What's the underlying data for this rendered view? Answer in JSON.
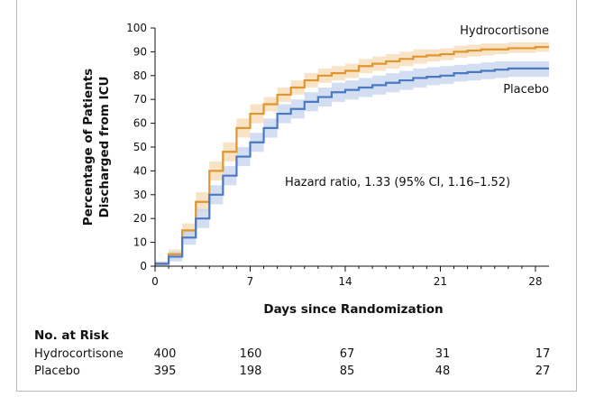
{
  "chart_data": {
    "type": "line",
    "subtype": "kaplan-meier-step",
    "ylabel_line1": "Percentage of Patients",
    "ylabel_line2": "Discharged from ICU",
    "xlabel": "Days since Randomization",
    "xlim": [
      0,
      29
    ],
    "ylim": [
      0,
      100
    ],
    "xticks": [
      0,
      7,
      14,
      21,
      28
    ],
    "yticks": [
      0,
      10,
      20,
      30,
      40,
      50,
      60,
      70,
      80,
      90,
      100
    ],
    "annotation": "Hazard ratio, 1.33 (95% CI, 1.16–1.52)",
    "series": [
      {
        "name": "Hydrocortisone",
        "color": "#e0962e",
        "band_color": "#f6d9b4",
        "x": [
          0,
          1,
          2,
          3,
          4,
          5,
          6,
          7,
          8,
          9,
          10,
          11,
          12,
          13,
          14,
          15,
          16,
          17,
          18,
          19,
          20,
          21,
          22,
          23,
          24,
          25,
          26,
          27,
          28,
          29
        ],
        "y": [
          1,
          5,
          15,
          27,
          40,
          48,
          58,
          64,
          68,
          72,
          75,
          78,
          80,
          81,
          82,
          84,
          85,
          86,
          87,
          88,
          88.5,
          89,
          90,
          90.5,
          91,
          91,
          91.5,
          91.5,
          92,
          92
        ],
        "ci_low": [
          0,
          3,
          12,
          23,
          36,
          44,
          54,
          60,
          65,
          69,
          72,
          75,
          77,
          78,
          79,
          81,
          82,
          83,
          84,
          85,
          86,
          86.5,
          87.5,
          88,
          88.5,
          89,
          89.5,
          89.5,
          90,
          90
        ],
        "ci_high": [
          2,
          7,
          18,
          31,
          44,
          52,
          62,
          68,
          71,
          75,
          78,
          81,
          83,
          84,
          85,
          87,
          88,
          89,
          90,
          91,
          91,
          91.5,
          92.5,
          93,
          93.5,
          93.5,
          94,
          94,
          94,
          94
        ]
      },
      {
        "name": "Placebo",
        "color": "#4a78c2",
        "band_color": "#c5d3ee",
        "x": [
          0,
          1,
          2,
          3,
          4,
          5,
          6,
          7,
          8,
          9,
          10,
          11,
          12,
          13,
          14,
          15,
          16,
          17,
          18,
          19,
          20,
          21,
          22,
          23,
          24,
          25,
          26,
          27,
          28,
          29
        ],
        "y": [
          1,
          4,
          12,
          20,
          30,
          38,
          46,
          52,
          58,
          64,
          66,
          69,
          71,
          73,
          74,
          75,
          76,
          77,
          78,
          79,
          79.5,
          80,
          81,
          81.5,
          82,
          82.5,
          83,
          83,
          83,
          83
        ],
        "ci_low": [
          0,
          2,
          9,
          16,
          26,
          34,
          42,
          48,
          54,
          60,
          62,
          65,
          67,
          69,
          70,
          71,
          72,
          73,
          74,
          75,
          76,
          76.5,
          77.5,
          78,
          78.5,
          79,
          79.5,
          79.5,
          79.5,
          79.5
        ],
        "ci_high": [
          2,
          6,
          15,
          24,
          34,
          42,
          50,
          56,
          62,
          68,
          70,
          73,
          75,
          77,
          78,
          79,
          80,
          81,
          82,
          83,
          83.5,
          84,
          84.5,
          85,
          85.5,
          86,
          86,
          86,
          86,
          86
        ]
      }
    ]
  },
  "risk_table": {
    "title": "No. at Risk",
    "days": [
      0,
      7,
      14,
      21,
      28
    ],
    "rows": [
      {
        "name": "Hydrocortisone",
        "values": [
          "400",
          "160",
          "67",
          "31",
          "17"
        ]
      },
      {
        "name": "Placebo",
        "values": [
          "395",
          "198",
          "85",
          "48",
          "27"
        ]
      }
    ]
  }
}
